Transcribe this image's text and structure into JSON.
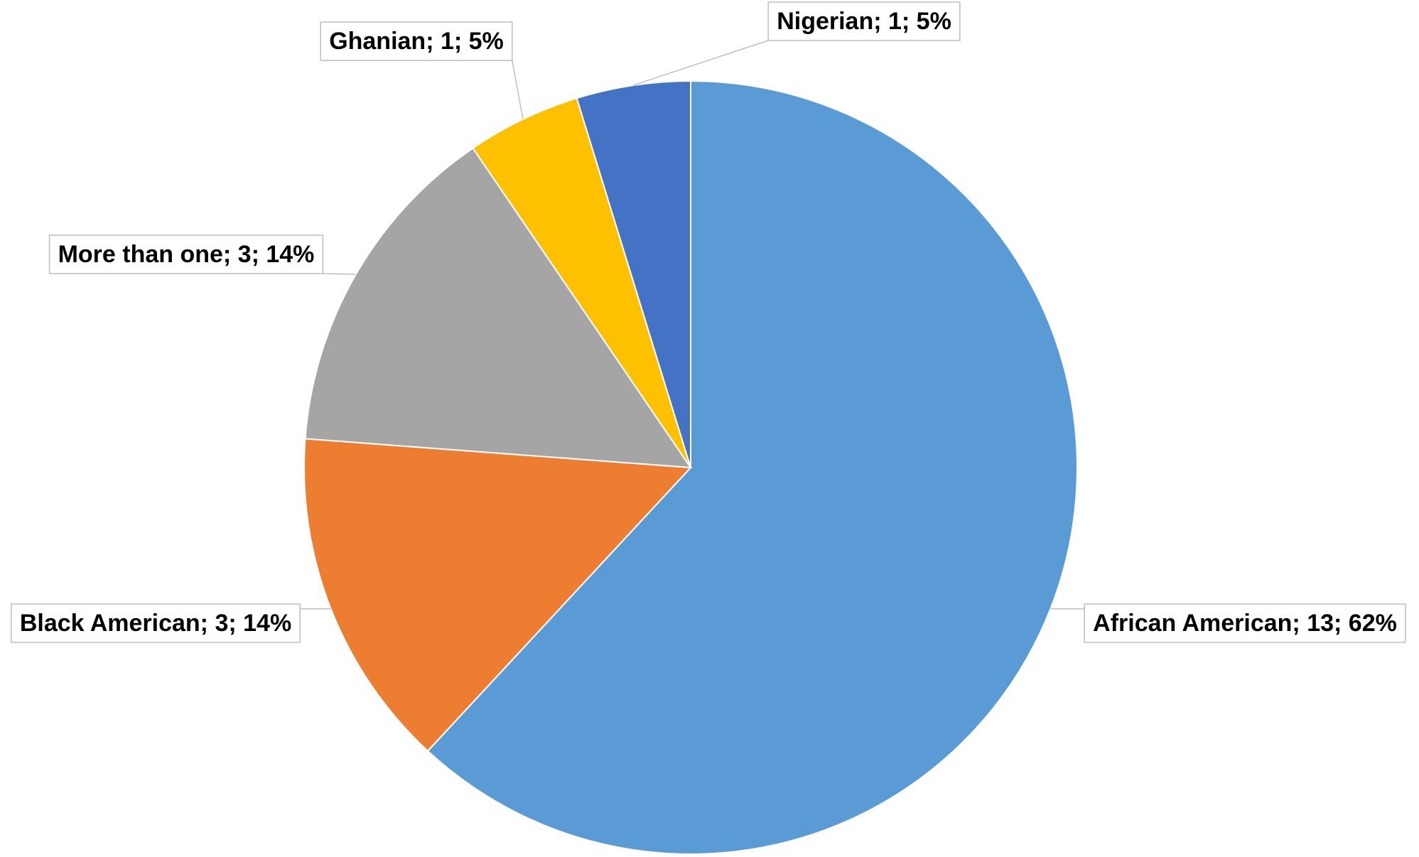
{
  "chart_data": {
    "type": "pie",
    "categories": [
      "African American",
      "Black American",
      "More than one",
      "Ghanian",
      "Nigerian"
    ],
    "values": [
      13,
      3,
      3,
      1,
      1
    ],
    "value_labels": [
      "African American; 13; 62%",
      "Black American; 3; 14%",
      "More than one; 3; 14%",
      "Ghanian; 1; 5%",
      "Nigerian; 1; 5%"
    ],
    "colors": [
      "#5b9bd5",
      "#ed7d31",
      "#a5a5a5",
      "#ffc000",
      "#4472c4"
    ]
  }
}
